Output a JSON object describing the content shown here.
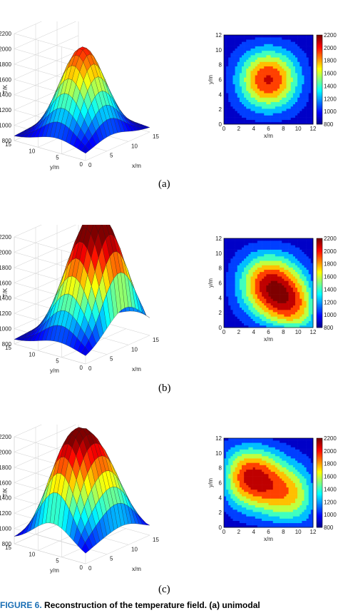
{
  "sub_labels": [
    "(a)",
    "(b)",
    "(c)"
  ],
  "caption": {
    "label": "FIGURE 6.",
    "text": "Reconstruction of the temperature field. (a) unimodal"
  },
  "colormap": [
    "#00008f",
    "#0000ff",
    "#007fff",
    "#00ffff",
    "#7fff7f",
    "#ffff00",
    "#ff7f00",
    "#ff0000",
    "#7f0000"
  ],
  "surface_axes": {
    "z_label": "T/K",
    "y_label": "y/m",
    "x_label": "x/m",
    "z_ticks": [
      "2200",
      "2000",
      "1800",
      "1600",
      "1400",
      "1200",
      "1000",
      "800"
    ],
    "y_ticks": [
      "15",
      "10",
      "5",
      "0"
    ],
    "x_ticks": [
      "0",
      "5",
      "10",
      "15"
    ]
  },
  "contour_axes": {
    "y_label": "y/m",
    "x_label": "x/m",
    "x_ticks": [
      "0",
      "2",
      "4",
      "6",
      "8",
      "10",
      "12"
    ],
    "y_ticks": [
      "12",
      "10",
      "8",
      "6",
      "4",
      "2",
      "0"
    ],
    "colorbar_ticks": [
      "2200",
      "2000",
      "1800",
      "1600",
      "1400",
      "1200",
      "1000",
      "800"
    ]
  },
  "chart_data": [
    {
      "type": "heatmap",
      "panel": "a-surface",
      "zlim": [
        800,
        2200
      ],
      "xlim": [
        0,
        15
      ],
      "ylim": [
        0,
        15
      ],
      "peaks": [
        {
          "x": 6,
          "y": 6,
          "T": 2050
        }
      ],
      "base_T": 850
    },
    {
      "type": "heatmap",
      "panel": "a-contour",
      "clim": [
        800,
        2200
      ],
      "xlim": [
        0,
        12
      ],
      "ylim": [
        0,
        12
      ],
      "peaks": [
        {
          "x": 6,
          "y": 6,
          "T": 2050
        }
      ],
      "base_T": 850
    },
    {
      "type": "heatmap",
      "panel": "b-surface",
      "zlim": [
        800,
        2200
      ],
      "xlim": [
        0,
        15
      ],
      "ylim": [
        0,
        15
      ],
      "peaks": [
        {
          "x": 6,
          "y": 6,
          "T": 1950
        },
        {
          "x": 10,
          "y": 2,
          "T": 2050
        }
      ],
      "base_T": 850
    },
    {
      "type": "heatmap",
      "panel": "b-contour",
      "clim": [
        800,
        2200
      ],
      "xlim": [
        0,
        12
      ],
      "ylim": [
        0,
        12
      ],
      "peaks": [
        {
          "x": 6,
          "y": 6,
          "T": 1950
        },
        {
          "x": 10,
          "y": 2,
          "T": 2050
        }
      ],
      "base_T": 850
    },
    {
      "type": "heatmap",
      "panel": "c-surface",
      "zlim": [
        800,
        2200
      ],
      "xlim": [
        0,
        15
      ],
      "ylim": [
        0,
        15
      ],
      "peaks": [
        {
          "x": 3,
          "y": 7,
          "T": 2150
        },
        {
          "x": 9.5,
          "y": 4,
          "T": 1800
        }
      ],
      "base_T": 850
    },
    {
      "type": "heatmap",
      "panel": "c-contour",
      "clim": [
        800,
        2200
      ],
      "xlim": [
        0,
        12
      ],
      "ylim": [
        0,
        12
      ],
      "peaks": [
        {
          "x": 3,
          "y": 7,
          "T": 2150
        },
        {
          "x": 9.5,
          "y": 4,
          "T": 1800
        }
      ],
      "base_T": 850
    }
  ]
}
